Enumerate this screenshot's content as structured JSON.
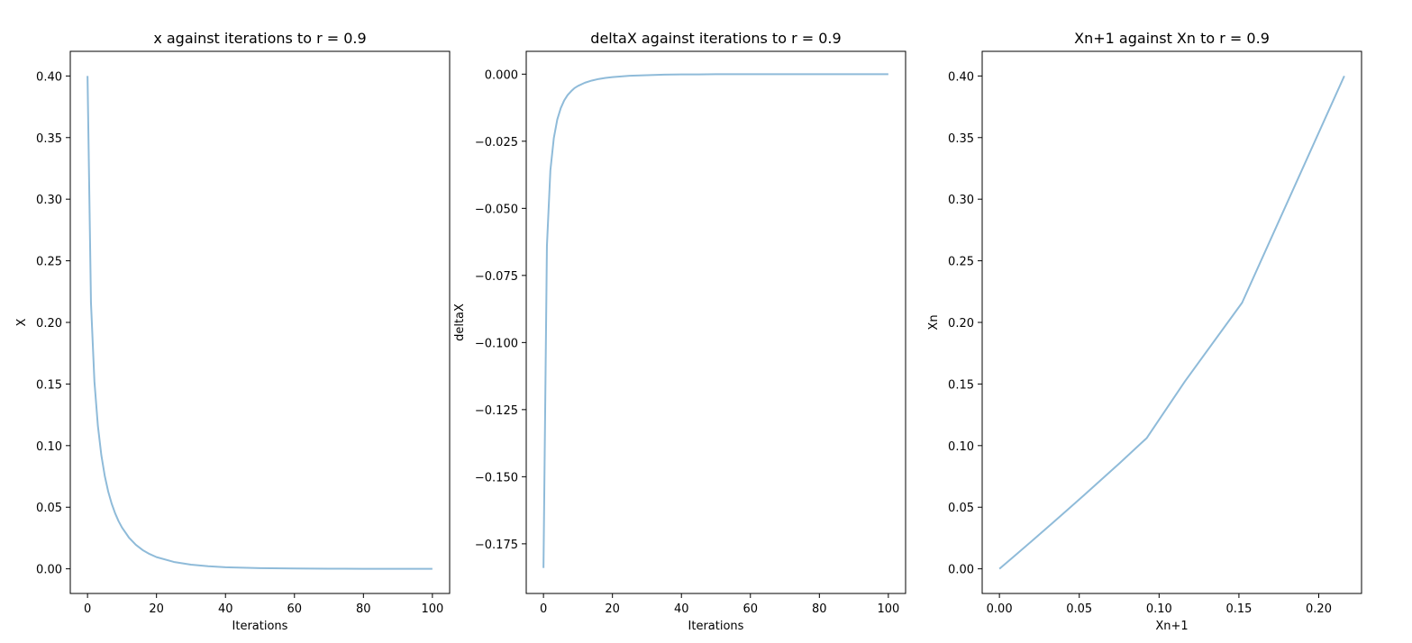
{
  "chart_data": [
    {
      "type": "line",
      "title": "x against iterations to r = 0.9",
      "xlabel": "Iterations",
      "ylabel": "X",
      "xlim": [
        -5,
        105
      ],
      "ylim": [
        -0.02,
        0.42
      ],
      "xticks": [
        0,
        20,
        40,
        60,
        80,
        100
      ],
      "yticks": [
        0.0,
        0.05,
        0.1,
        0.15,
        0.2,
        0.25,
        0.3,
        0.35,
        0.4
      ],
      "yticklabels": [
        "0.00",
        "0.05",
        "0.10",
        "0.15",
        "0.20",
        "0.25",
        "0.30",
        "0.35",
        "0.40"
      ],
      "grid": false,
      "series": [
        {
          "color": "#8fbbd9",
          "x": [
            0,
            1,
            2,
            3,
            4,
            5,
            6,
            7,
            8,
            9,
            10,
            12,
            14,
            16,
            18,
            20,
            25,
            30,
            35,
            40,
            45,
            50,
            60,
            70,
            80,
            90,
            100
          ],
          "y": [
            0.4,
            0.216,
            0.152,
            0.1161,
            0.0923,
            0.0754,
            0.0627,
            0.0529,
            0.0451,
            0.0387,
            0.0335,
            0.0254,
            0.0195,
            0.0152,
            0.012,
            0.0095,
            0.0056,
            0.0034,
            0.0021,
            0.0013,
            0.0009,
            0.0006,
            0.0003,
            0.0001,
            0.0,
            0.0,
            0.0
          ]
        }
      ]
    },
    {
      "type": "line",
      "title": "deltaX against iterations to r = 0.9",
      "xlabel": "Iterations",
      "ylabel": "deltaX",
      "xlim": [
        -5,
        105
      ],
      "ylim": [
        -0.1935,
        0.0085
      ],
      "xticks": [
        0,
        20,
        40,
        60,
        80,
        100
      ],
      "yticks": [
        -0.175,
        -0.15,
        -0.125,
        -0.1,
        -0.075,
        -0.05,
        -0.025,
        0.0
      ],
      "yticklabels": [
        "−0.175",
        "−0.150",
        "−0.125",
        "−0.100",
        "−0.075",
        "−0.050",
        "−0.025",
        "0.000"
      ],
      "grid": false,
      "series": [
        {
          "color": "#8fbbd9",
          "x": [
            0,
            1,
            2,
            3,
            4,
            5,
            6,
            7,
            8,
            9,
            10,
            12,
            14,
            16,
            18,
            20,
            25,
            30,
            35,
            40,
            45,
            50,
            60,
            70,
            80,
            90,
            100
          ],
          "y": [
            -0.184,
            -0.064,
            -0.0359,
            -0.0238,
            -0.0169,
            -0.0127,
            -0.0098,
            -0.0078,
            -0.0064,
            -0.0052,
            -0.0044,
            -0.0032,
            -0.0024,
            -0.0018,
            -0.0014,
            -0.0011,
            -0.0006,
            -0.0004,
            -0.0002,
            -0.0001,
            -0.0001,
            0.0,
            0.0,
            0.0,
            0.0,
            0.0,
            0.0
          ]
        }
      ]
    },
    {
      "type": "line",
      "title": "Xn+1 against Xn to r = 0.9",
      "xlabel": "Xn+1",
      "ylabel": "Xn",
      "xlim": [
        -0.0108,
        0.2268
      ],
      "ylim": [
        -0.02,
        0.42
      ],
      "xticks": [
        0.0,
        0.05,
        0.1,
        0.15,
        0.2
      ],
      "xticklabels": [
        "0.00",
        "0.05",
        "0.10",
        "0.15",
        "0.20"
      ],
      "yticks": [
        0.0,
        0.05,
        0.1,
        0.15,
        0.2,
        0.25,
        0.3,
        0.35,
        0.4
      ],
      "yticklabels": [
        "0.00",
        "0.05",
        "0.10",
        "0.15",
        "0.20",
        "0.25",
        "0.30",
        "0.35",
        "0.40"
      ],
      "grid": false,
      "series": [
        {
          "color": "#8fbbd9",
          "x": [
            0.0,
            0.0095,
            0.0195,
            0.0335,
            0.0451,
            0.0529,
            0.0627,
            0.0754,
            0.0923,
            0.1161,
            0.152,
            0.216
          ],
          "y": [
            0.0,
            0.0105,
            0.0217,
            0.0375,
            0.0507,
            0.0597,
            0.0711,
            0.0859,
            0.1062,
            0.152,
            0.216,
            0.4
          ]
        }
      ]
    }
  ]
}
